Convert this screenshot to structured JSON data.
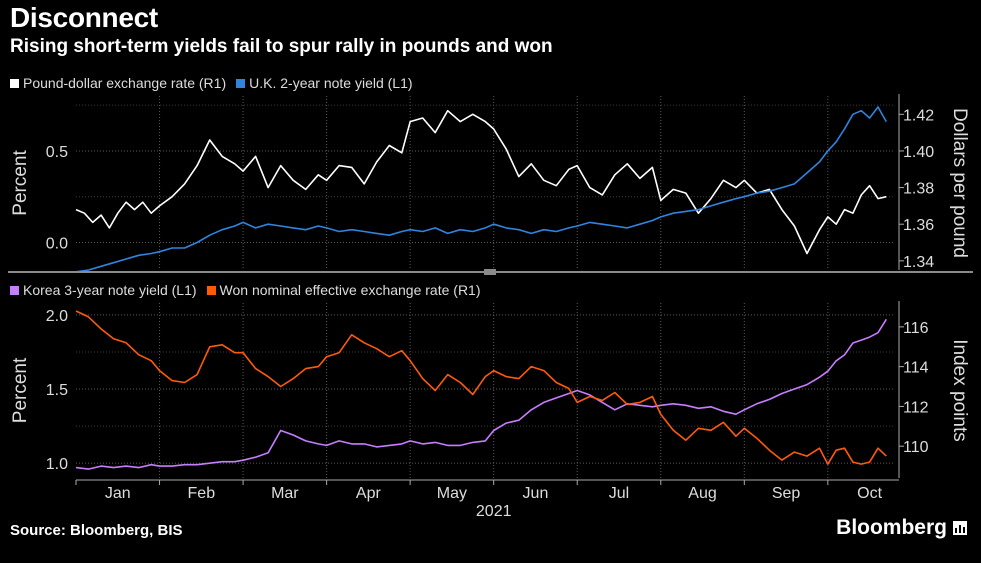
{
  "title": "Disconnect",
  "subtitle": "Rising short-term yields fail to spur rally in pounds and won",
  "source": "Source: Bloomberg, BIS",
  "brand": "Bloomberg",
  "colors": {
    "white": "#ffffff",
    "blue": "#2f84e0",
    "purple": "#c77dff",
    "orange": "#ff5a0a"
  },
  "chart_data": [
    {
      "type": "line",
      "legend": [
        {
          "label": "Pound-dollar exchange rate (R1)",
          "color": "#ffffff"
        },
        {
          "label": "U.K. 2-year note yield (L1)",
          "color": "#2f84e0"
        }
      ],
      "ylabel_left": "Percent",
      "ylabel_right": "Dollars per pound",
      "ylim_left": [
        -0.15,
        0.8
      ],
      "ylim_right": [
        1.335,
        1.43
      ],
      "left_ticks": [
        "0.0",
        "0.5"
      ],
      "left_tick_values": [
        0.0,
        0.5
      ],
      "right_ticks": [
        "1.34",
        "1.36",
        "1.38",
        "1.40",
        "1.42"
      ],
      "right_tick_values": [
        1.34,
        1.36,
        1.38,
        1.4,
        1.42
      ],
      "series": [
        {
          "name": "Pound-dollar exchange rate (R1)",
          "axis": "right",
          "color": "#ffffff",
          "x": [
            0,
            0.1,
            0.2,
            0.3,
            0.4,
            0.5,
            0.6,
            0.7,
            0.8,
            0.9,
            1.0,
            1.15,
            1.3,
            1.45,
            1.6,
            1.75,
            1.9,
            2.0,
            2.15,
            2.3,
            2.45,
            2.6,
            2.75,
            2.9,
            3.0,
            3.15,
            3.3,
            3.45,
            3.6,
            3.75,
            3.9,
            4.0,
            4.15,
            4.3,
            4.45,
            4.6,
            4.75,
            4.9,
            5.0,
            5.15,
            5.3,
            5.45,
            5.6,
            5.75,
            5.9,
            6.0,
            6.15,
            6.3,
            6.45,
            6.6,
            6.75,
            6.9,
            7.0,
            7.15,
            7.3,
            7.45,
            7.6,
            7.75,
            7.9,
            8.0,
            8.15,
            8.3,
            8.45,
            8.6,
            8.75,
            8.9,
            9.0,
            9.1,
            9.2,
            9.3,
            9.4,
            9.5,
            9.6,
            9.7
          ],
          "values": [
            1.368,
            1.366,
            1.361,
            1.365,
            1.358,
            1.366,
            1.372,
            1.368,
            1.372,
            1.366,
            1.37,
            1.375,
            1.382,
            1.392,
            1.406,
            1.397,
            1.393,
            1.389,
            1.397,
            1.38,
            1.392,
            1.384,
            1.379,
            1.387,
            1.384,
            1.392,
            1.391,
            1.382,
            1.394,
            1.403,
            1.399,
            1.416,
            1.418,
            1.41,
            1.422,
            1.416,
            1.42,
            1.416,
            1.412,
            1.401,
            1.386,
            1.393,
            1.384,
            1.381,
            1.39,
            1.392,
            1.38,
            1.376,
            1.387,
            1.393,
            1.385,
            1.391,
            1.373,
            1.379,
            1.377,
            1.366,
            1.374,
            1.384,
            1.38,
            1.384,
            1.377,
            1.379,
            1.368,
            1.359,
            1.344,
            1.357,
            1.364,
            1.36,
            1.368,
            1.366,
            1.376,
            1.381,
            1.374,
            1.375
          ]
        },
        {
          "name": "U.K. 2-year note yield (L1)",
          "axis": "left",
          "color": "#2f84e0",
          "x": [
            0,
            0.15,
            0.3,
            0.45,
            0.6,
            0.75,
            0.9,
            1.0,
            1.15,
            1.3,
            1.45,
            1.6,
            1.75,
            1.9,
            2.0,
            2.15,
            2.3,
            2.45,
            2.6,
            2.75,
            2.9,
            3.0,
            3.15,
            3.3,
            3.45,
            3.6,
            3.75,
            3.9,
            4.0,
            4.15,
            4.3,
            4.45,
            4.6,
            4.75,
            4.9,
            5.0,
            5.15,
            5.3,
            5.45,
            5.6,
            5.75,
            5.9,
            6.0,
            6.15,
            6.3,
            6.45,
            6.6,
            6.75,
            6.9,
            7.0,
            7.15,
            7.3,
            7.45,
            7.6,
            7.75,
            7.9,
            8.0,
            8.15,
            8.3,
            8.45,
            8.6,
            8.75,
            8.9,
            9.0,
            9.1,
            9.2,
            9.3,
            9.4,
            9.5,
            9.6,
            9.7
          ],
          "values": [
            -0.16,
            -0.15,
            -0.13,
            -0.11,
            -0.09,
            -0.07,
            -0.06,
            -0.05,
            -0.03,
            -0.03,
            0.0,
            0.04,
            0.07,
            0.09,
            0.11,
            0.08,
            0.1,
            0.09,
            0.08,
            0.07,
            0.09,
            0.08,
            0.06,
            0.07,
            0.06,
            0.05,
            0.04,
            0.06,
            0.07,
            0.06,
            0.08,
            0.05,
            0.07,
            0.06,
            0.08,
            0.1,
            0.08,
            0.07,
            0.05,
            0.07,
            0.06,
            0.08,
            0.09,
            0.11,
            0.1,
            0.09,
            0.08,
            0.1,
            0.12,
            0.14,
            0.16,
            0.17,
            0.18,
            0.2,
            0.22,
            0.24,
            0.25,
            0.27,
            0.28,
            0.3,
            0.32,
            0.38,
            0.44,
            0.5,
            0.55,
            0.62,
            0.7,
            0.72,
            0.68,
            0.74,
            0.66
          ]
        }
      ]
    },
    {
      "type": "line",
      "legend": [
        {
          "label": "Korea 3-year note yield (L1)",
          "color": "#c77dff"
        },
        {
          "label": "Won nominal effective exchange rate (R1)",
          "color": "#ff5a0a"
        }
      ],
      "ylabel_left": "Percent",
      "ylabel_right": "Index points",
      "ylim_left": [
        0.9,
        2.08
      ],
      "ylim_right": [
        108.4,
        117.2
      ],
      "left_ticks": [
        "1.0",
        "1.5",
        "2.0"
      ],
      "left_tick_values": [
        1.0,
        1.5,
        2.0
      ],
      "right_ticks": [
        "110",
        "112",
        "114",
        "116"
      ],
      "right_tick_values": [
        110,
        112,
        114,
        116
      ],
      "xlabel": "2021",
      "x_ticks": [
        "Jan",
        "Feb",
        "Mar",
        "Apr",
        "May",
        "Jun",
        "Jul",
        "Aug",
        "Sep",
        "Oct"
      ],
      "series": [
        {
          "name": "Korea 3-year note yield (L1)",
          "axis": "left",
          "color": "#c77dff",
          "x": [
            0,
            0.15,
            0.3,
            0.45,
            0.6,
            0.75,
            0.9,
            1.0,
            1.15,
            1.3,
            1.45,
            1.6,
            1.75,
            1.9,
            2.0,
            2.15,
            2.3,
            2.45,
            2.6,
            2.75,
            2.9,
            3.0,
            3.15,
            3.3,
            3.45,
            3.6,
            3.75,
            3.9,
            4.0,
            4.15,
            4.3,
            4.45,
            4.6,
            4.75,
            4.9,
            5.0,
            5.15,
            5.3,
            5.45,
            5.6,
            5.75,
            5.9,
            6.0,
            6.15,
            6.3,
            6.45,
            6.6,
            6.75,
            6.9,
            7.0,
            7.15,
            7.3,
            7.45,
            7.6,
            7.75,
            7.9,
            8.0,
            8.15,
            8.3,
            8.45,
            8.6,
            8.75,
            8.9,
            9.0,
            9.1,
            9.2,
            9.3,
            9.4,
            9.5,
            9.6,
            9.7
          ],
          "values": [
            0.97,
            0.96,
            0.98,
            0.97,
            0.98,
            0.97,
            0.99,
            0.98,
            0.98,
            0.99,
            0.99,
            1.0,
            1.01,
            1.01,
            1.02,
            1.04,
            1.07,
            1.22,
            1.19,
            1.15,
            1.13,
            1.12,
            1.15,
            1.13,
            1.13,
            1.11,
            1.12,
            1.13,
            1.15,
            1.13,
            1.14,
            1.12,
            1.12,
            1.14,
            1.15,
            1.22,
            1.27,
            1.29,
            1.36,
            1.41,
            1.44,
            1.47,
            1.49,
            1.46,
            1.41,
            1.36,
            1.4,
            1.39,
            1.38,
            1.39,
            1.4,
            1.39,
            1.37,
            1.38,
            1.35,
            1.33,
            1.36,
            1.4,
            1.43,
            1.47,
            1.5,
            1.53,
            1.58,
            1.62,
            1.69,
            1.73,
            1.81,
            1.83,
            1.85,
            1.88,
            1.97
          ]
        },
        {
          "name": "Won nominal effective exchange rate (R1)",
          "axis": "right",
          "color": "#ff5a0a",
          "x": [
            0,
            0.15,
            0.3,
            0.45,
            0.6,
            0.75,
            0.9,
            1.0,
            1.15,
            1.3,
            1.45,
            1.6,
            1.75,
            1.9,
            2.0,
            2.15,
            2.3,
            2.45,
            2.6,
            2.75,
            2.9,
            3.0,
            3.15,
            3.3,
            3.45,
            3.6,
            3.75,
            3.9,
            4.0,
            4.15,
            4.3,
            4.45,
            4.6,
            4.75,
            4.9,
            5.0,
            5.15,
            5.3,
            5.45,
            5.6,
            5.75,
            5.9,
            6.0,
            6.15,
            6.3,
            6.45,
            6.6,
            6.75,
            6.9,
            7.0,
            7.15,
            7.3,
            7.45,
            7.6,
            7.75,
            7.9,
            8.0,
            8.15,
            8.3,
            8.45,
            8.6,
            8.75,
            8.9,
            9.0,
            9.1,
            9.2,
            9.3,
            9.4,
            9.5,
            9.6,
            9.7
          ],
          "values": [
            116.8,
            116.5,
            115.9,
            115.4,
            115.2,
            114.6,
            114.3,
            113.8,
            113.3,
            113.2,
            113.6,
            115.0,
            115.1,
            114.7,
            114.7,
            113.9,
            113.5,
            113.0,
            113.4,
            113.9,
            114.0,
            114.5,
            114.7,
            115.6,
            115.2,
            114.9,
            114.5,
            114.8,
            114.3,
            113.4,
            112.8,
            113.6,
            113.2,
            112.6,
            113.5,
            113.8,
            113.5,
            113.4,
            114.0,
            113.8,
            113.2,
            112.9,
            112.2,
            112.5,
            112.3,
            112.7,
            112.1,
            112.2,
            112.5,
            111.6,
            110.8,
            110.3,
            110.9,
            110.8,
            111.2,
            110.5,
            110.9,
            110.4,
            109.8,
            109.3,
            109.7,
            109.5,
            109.9,
            109.1,
            109.8,
            109.9,
            109.2,
            109.1,
            109.2,
            109.9,
            109.5
          ]
        }
      ]
    }
  ]
}
